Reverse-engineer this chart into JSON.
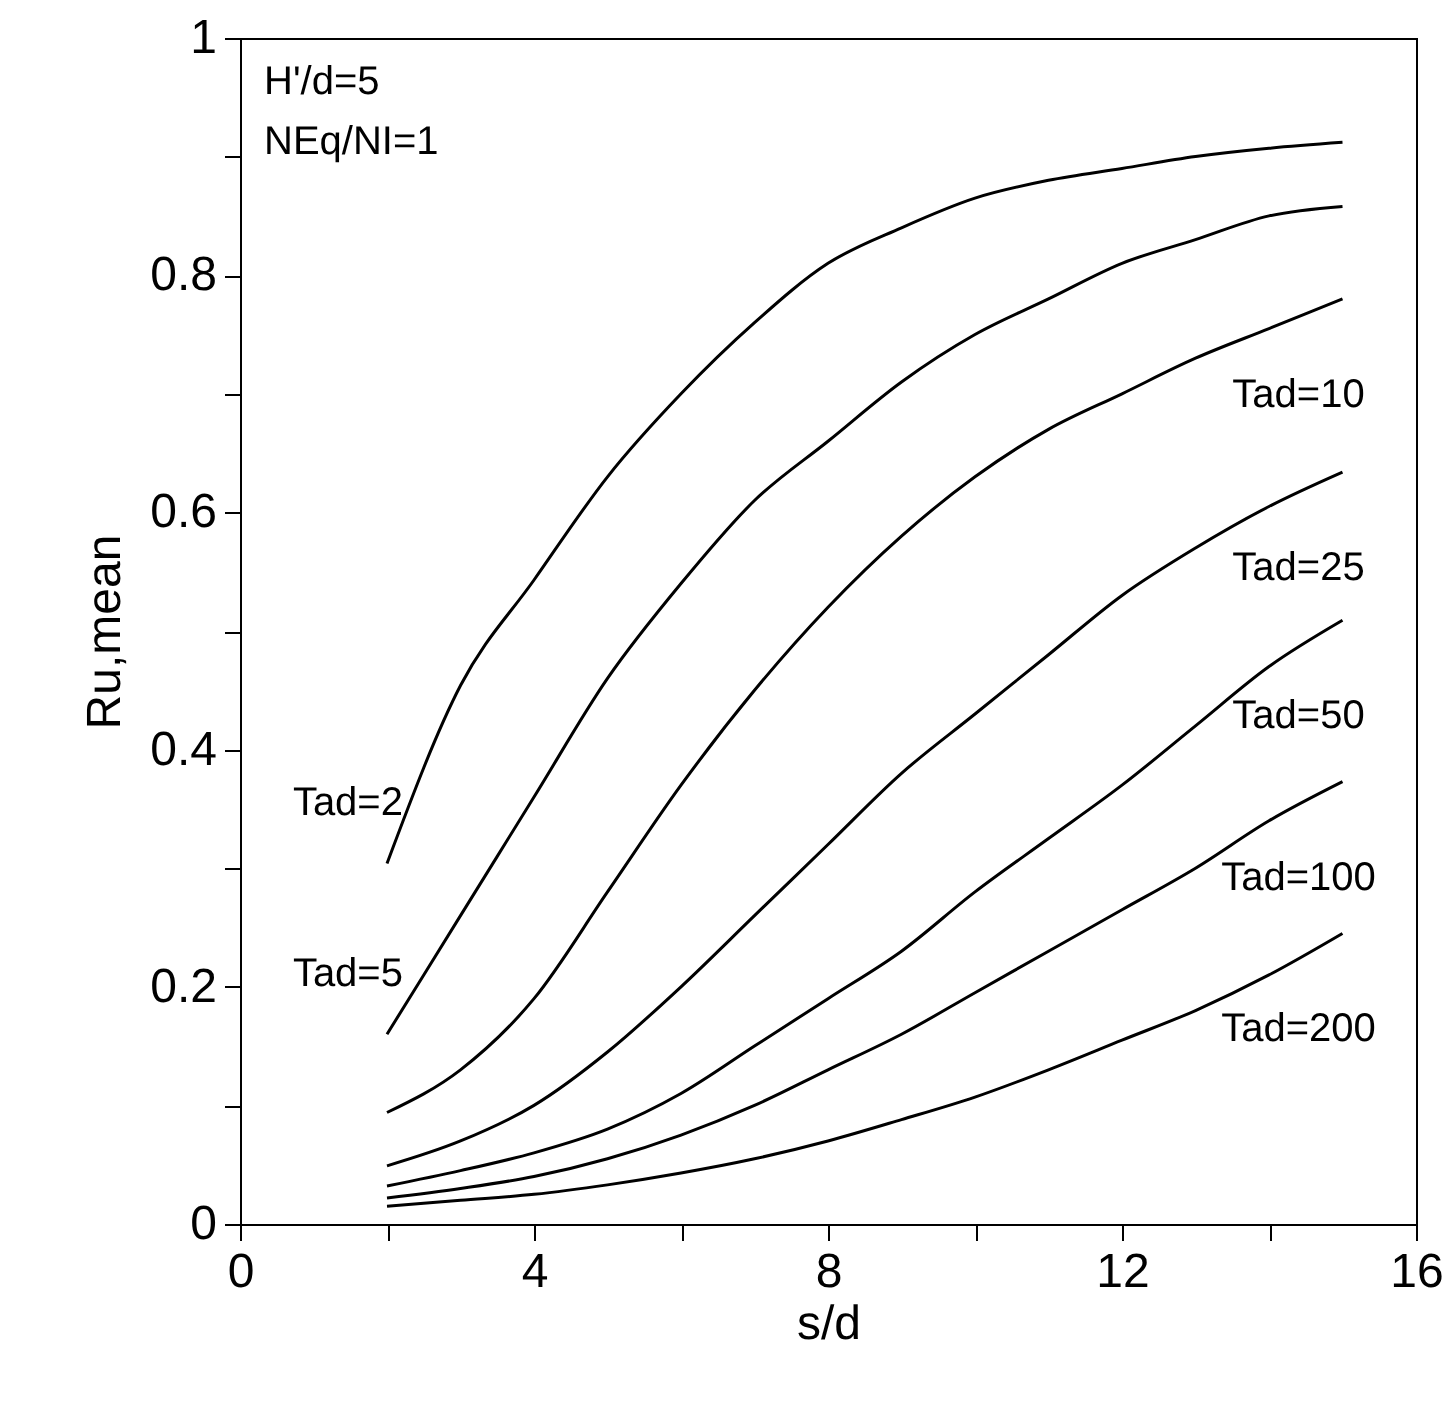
{
  "chart_data": {
    "type": "line",
    "xlabel": "s/d",
    "ylabel": "Ru,mean",
    "x": [
      2,
      3,
      4,
      5,
      6,
      7,
      8,
      9,
      10,
      11,
      12,
      13,
      14,
      15
    ],
    "series": [
      {
        "name": "Tad=2",
        "color": "#000000",
        "values": [
          0.304,
          0.454,
          0.543,
          0.63,
          0.7,
          0.76,
          0.81,
          0.84,
          0.865,
          0.88,
          0.89,
          0.9,
          0.907,
          0.912
        ]
      },
      {
        "name": "Tad=5",
        "color": "#000000",
        "values": [
          0.16,
          0.26,
          0.36,
          0.46,
          0.54,
          0.61,
          0.66,
          0.71,
          0.75,
          0.78,
          0.81,
          0.83,
          0.85,
          0.858
        ]
      },
      {
        "name": "Tad=10",
        "color": "#000000",
        "values": [
          0.094,
          0.13,
          0.19,
          0.28,
          0.37,
          0.45,
          0.52,
          0.58,
          0.63,
          0.67,
          0.7,
          0.73,
          0.755,
          0.78
        ]
      },
      {
        "name": "Tad=25",
        "color": "#000000",
        "values": [
          0.049,
          0.07,
          0.1,
          0.145,
          0.2,
          0.26,
          0.32,
          0.38,
          0.43,
          0.48,
          0.53,
          0.57,
          0.605,
          0.634
        ]
      },
      {
        "name": "Tad=50",
        "color": "#000000",
        "values": [
          0.032,
          0.045,
          0.06,
          0.08,
          0.11,
          0.15,
          0.19,
          0.23,
          0.28,
          0.325,
          0.37,
          0.42,
          0.47,
          0.509
        ]
      },
      {
        "name": "Tad=100",
        "color": "#000000",
        "values": [
          0.022,
          0.03,
          0.04,
          0.055,
          0.075,
          0.1,
          0.13,
          0.16,
          0.195,
          0.23,
          0.265,
          0.3,
          0.34,
          0.373
        ]
      },
      {
        "name": "Tad=200",
        "color": "#000000",
        "values": [
          0.015,
          0.02,
          0.025,
          0.033,
          0.043,
          0.055,
          0.07,
          0.088,
          0.107,
          0.13,
          0.155,
          0.18,
          0.21,
          0.245
        ]
      }
    ],
    "annotations": [
      "H'/d=5",
      "NEq/NI=1"
    ],
    "xlim": [
      0,
      16
    ],
    "xticks": [
      0,
      {
        "value": 2,
        "label": null
      },
      4,
      {
        "value": 6,
        "label": null
      },
      8,
      {
        "value": 10,
        "label": null
      },
      12,
      {
        "value": 14,
        "label": null
      },
      16
    ],
    "ylim": [
      0,
      1
    ],
    "yticks": [
      0,
      {
        "value": 0.1,
        "label": null
      },
      0.2,
      {
        "value": 0.3,
        "label": null
      },
      0.4,
      {
        "value": 0.5,
        "label": null
      },
      0.6,
      {
        "value": 0.7,
        "label": null
      },
      0.8,
      {
        "value": 0.9,
        "label": null
      },
      1
    ],
    "grid": false,
    "marker": "none",
    "line_style": "solid"
  }
}
